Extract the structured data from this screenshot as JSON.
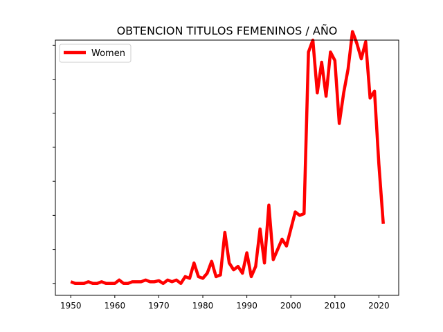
{
  "chart_data": {
    "type": "line",
    "title": "OBTENCION TITULOS FEMENINOS / AÑO",
    "xlabel": "",
    "ylabel": "",
    "xlim": [
      1946.5,
      2024.5
    ],
    "ylim": [
      -3.5,
      71.5
    ],
    "x_ticks": [
      1950,
      1960,
      1970,
      1980,
      1990,
      2000,
      2010,
      2020
    ],
    "x_tick_labels": [
      "1950",
      "1960",
      "1970",
      "1980",
      "1990",
      "2000",
      "2010",
      "2020"
    ],
    "y_ticks_unlabeled": [
      0,
      10,
      20,
      30,
      40,
      50,
      60,
      70
    ],
    "legend": {
      "position": "top-left",
      "entries": [
        "Women"
      ]
    },
    "series": [
      {
        "name": "Women",
        "color": "#ff0000",
        "x": [
          1950,
          1951,
          1952,
          1953,
          1954,
          1955,
          1956,
          1957,
          1958,
          1959,
          1960,
          1961,
          1962,
          1963,
          1964,
          1965,
          1966,
          1967,
          1968,
          1969,
          1970,
          1971,
          1972,
          1973,
          1974,
          1975,
          1976,
          1977,
          1978,
          1979,
          1980,
          1981,
          1982,
          1983,
          1984,
          1985,
          1986,
          1987,
          1988,
          1989,
          1990,
          1991,
          1992,
          1993,
          1994,
          1995,
          1996,
          1997,
          1998,
          1999,
          2000,
          2001,
          2002,
          2003,
          2004,
          2005,
          2006,
          2007,
          2008,
          2009,
          2010,
          2011,
          2012,
          2013,
          2014,
          2015,
          2016,
          2017,
          2018,
          2019,
          2020,
          2021
        ],
        "y": [
          0.5,
          0,
          0,
          0,
          0.5,
          0,
          0,
          0.5,
          0,
          0,
          0,
          1,
          0,
          0,
          0.5,
          0.5,
          0.5,
          1,
          0.5,
          0.5,
          0.8,
          0,
          1,
          0.5,
          1,
          0,
          2,
          1.5,
          6,
          2,
          1.5,
          3,
          6.5,
          2,
          2.5,
          15,
          6,
          4,
          5,
          3,
          9,
          2,
          5,
          16,
          6,
          23,
          7,
          10,
          13,
          11,
          16,
          21,
          20,
          20.5,
          68,
          71.5,
          56,
          65,
          55,
          68,
          65.5,
          47,
          56,
          63,
          74,
          70.5,
          66,
          71,
          54.5,
          56.5,
          35,
          17.5
        ]
      }
    ]
  }
}
